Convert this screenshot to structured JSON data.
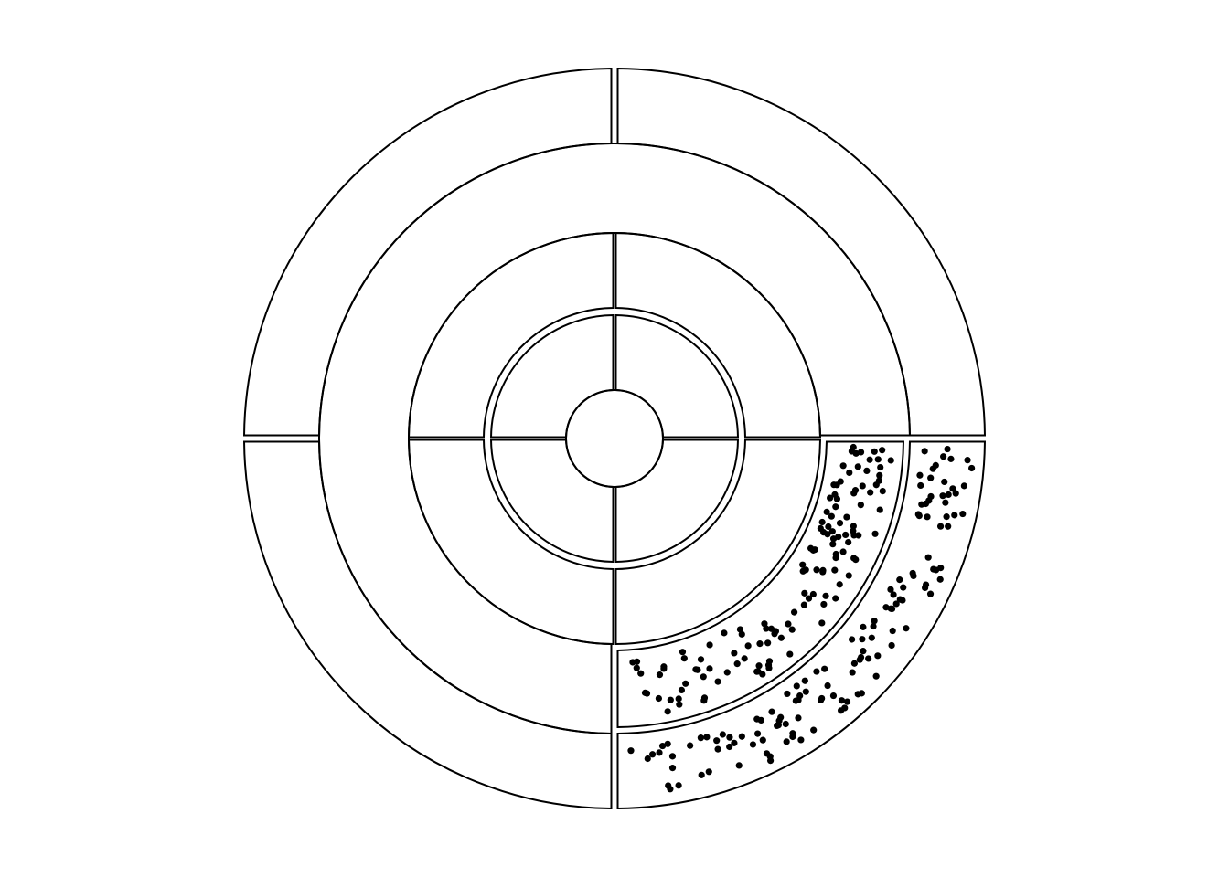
{
  "diagram": {
    "kind": "concentric-ring-partition",
    "stroke_color": "#000000",
    "fill_color": "#ffffff",
    "dot_color": "#000000",
    "center_label": "",
    "rings": [
      {
        "name": "core-circle",
        "sectors": 1
      },
      {
        "name": "ring-1",
        "sectors": 4
      },
      {
        "name": "ring-2",
        "sectors": 4
      },
      {
        "name": "ring-3",
        "sectors": 4,
        "merged_top": true
      },
      {
        "name": "ring-4",
        "sectors": 4
      }
    ],
    "dotted_cells": [
      "ring-3-bottom-right",
      "ring-4-bottom-right"
    ],
    "dots_per_cell": 130
  }
}
